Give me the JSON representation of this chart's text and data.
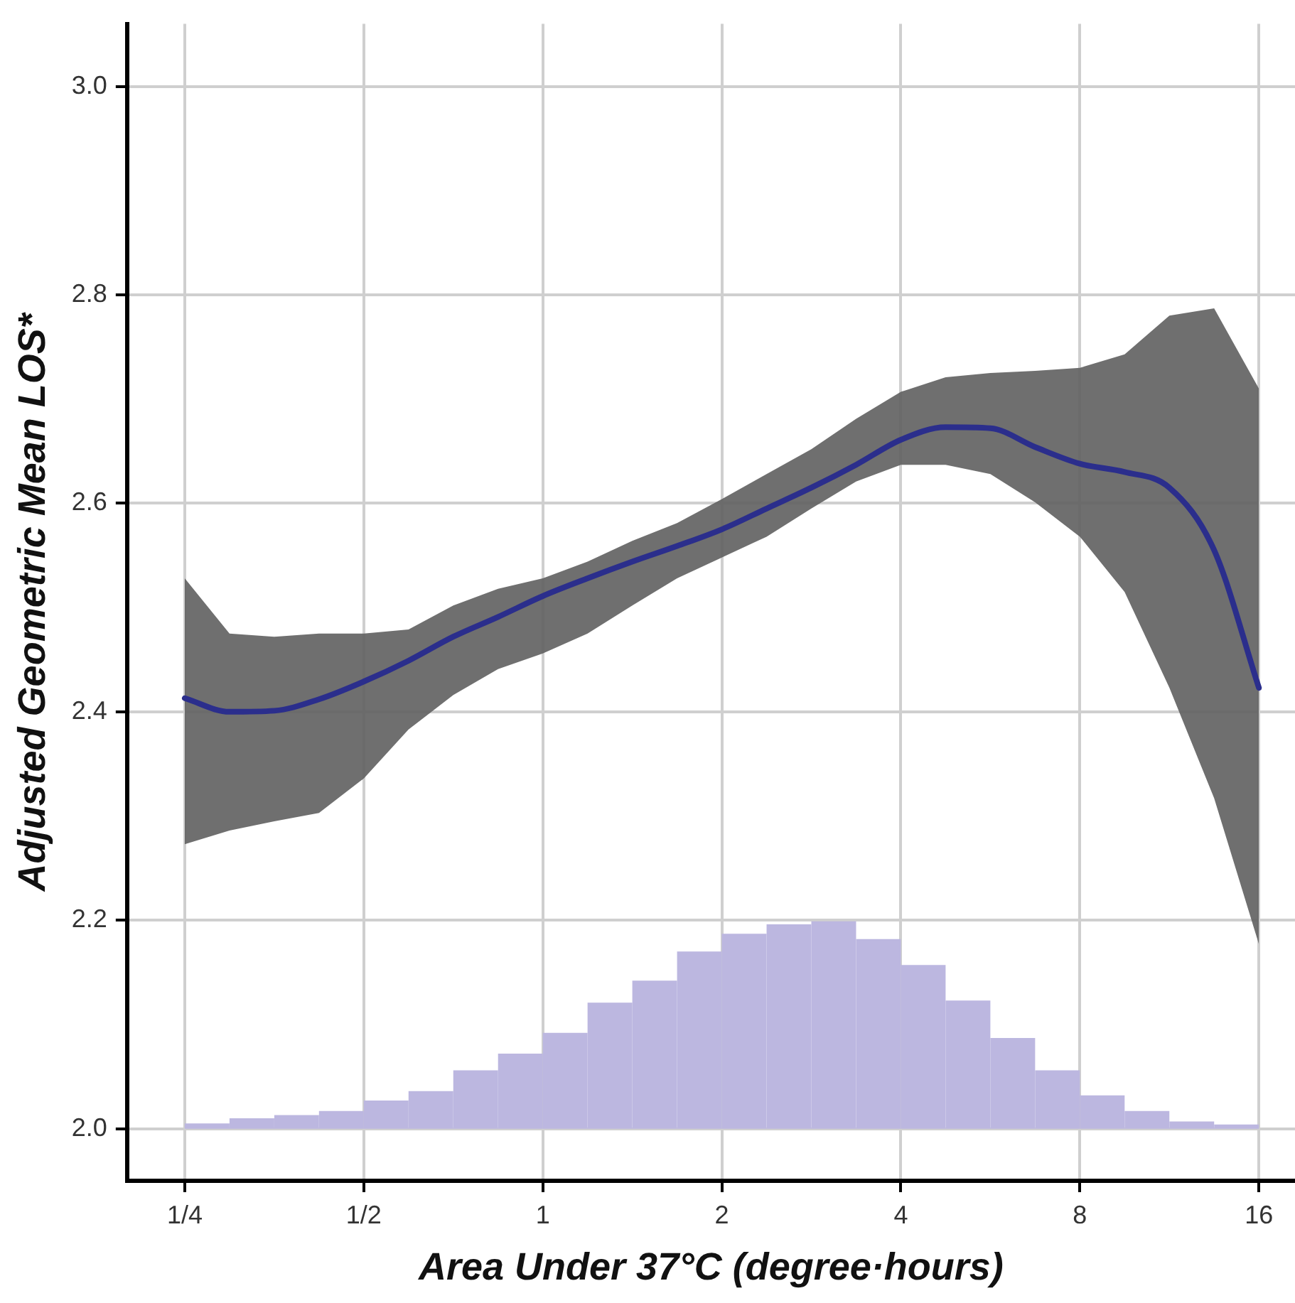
{
  "chart_data": {
    "type": "line",
    "xlabel": "Area Under 37°C (degree·hours)",
    "ylabel": "Adjusted Geometric Mean LOS*",
    "log": "x",
    "grid": true,
    "xlim": [
      0.2,
      18.4
    ],
    "xticks": [
      {
        "value": 0.25,
        "label": "1/4"
      },
      {
        "value": 0.5,
        "label": "1/2"
      },
      1,
      2,
      4,
      8,
      16
    ],
    "ylim": [
      1.95,
      3.06
    ],
    "yticks": [
      {
        "value": 2,
        "label": "2.0"
      },
      {
        "value": 2.2,
        "label": "2.2"
      },
      {
        "value": 2.4,
        "label": "2.4"
      },
      {
        "value": 2.6,
        "label": "2.6"
      },
      {
        "value": 2.8,
        "label": "2.8"
      },
      {
        "value": 3,
        "label": "3.0"
      }
    ],
    "series": [
      {
        "type": "histogram",
        "color": "#bcb7e0",
        "bins": [
          0.25,
          0.2973,
          0.3536,
          0.4204,
          0.5,
          0.5946,
          0.7071,
          0.8409,
          1,
          1.1892,
          1.4142,
          1.6818,
          2,
          2.3784,
          2.8284,
          3.3636,
          4,
          4.7568,
          5.6569,
          6.7272,
          8,
          9.5137,
          11.3137,
          13.4543,
          16
        ],
        "base": [
          2,
          2,
          2,
          2,
          2,
          2,
          2,
          2,
          2,
          2,
          2,
          2,
          2,
          2,
          2,
          2,
          2,
          2,
          2,
          2,
          2,
          2,
          2,
          2
        ],
        "values": [
          0.005,
          0.01,
          0.013,
          0.017,
          0.027,
          0.036,
          0.056,
          0.072,
          0.092,
          0.121,
          0.142,
          0.17,
          0.187,
          0.196,
          0.199,
          0.182,
          0.157,
          0.123,
          0.087,
          0.056,
          0.032,
          0.017,
          0.007,
          0.004
        ]
      },
      {
        "color": "#2b2e8c",
        "x": [
          0.25,
          0.2973,
          0.3536,
          0.4204,
          0.5,
          0.5946,
          0.7071,
          0.8409,
          1,
          1.1892,
          1.4142,
          1.6818,
          2,
          2.3784,
          2.8284,
          3.3636,
          4,
          4.7568,
          5.6569,
          6.7272,
          8,
          9.5137,
          11.3137,
          13.4543,
          16
        ],
        "values": [
          2.413,
          2.4,
          2.401,
          2.412,
          2.429,
          2.449,
          2.472,
          2.491,
          2.511,
          2.528,
          2.544,
          2.559,
          2.575,
          2.595,
          2.615,
          2.637,
          2.661,
          2.673,
          2.672,
          2.654,
          2.638,
          2.63,
          2.615,
          2.555,
          2.423
        ],
        "upper": [
          2.528,
          2.475,
          2.472,
          2.475,
          2.475,
          2.479,
          2.502,
          2.518,
          2.528,
          2.544,
          2.564,
          2.581,
          2.604,
          2.628,
          2.652,
          2.681,
          2.707,
          2.721,
          2.725,
          2.727,
          2.73,
          2.743,
          2.78,
          2.787,
          2.71
        ],
        "lower": [
          2.273,
          2.286,
          2.295,
          2.303,
          2.336,
          2.383,
          2.416,
          2.441,
          2.456,
          2.475,
          2.502,
          2.528,
          2.548,
          2.568,
          2.595,
          2.621,
          2.637,
          2.637,
          2.628,
          2.601,
          2.568,
          2.515,
          2.423,
          2.317,
          2.177
        ]
      }
    ]
  }
}
